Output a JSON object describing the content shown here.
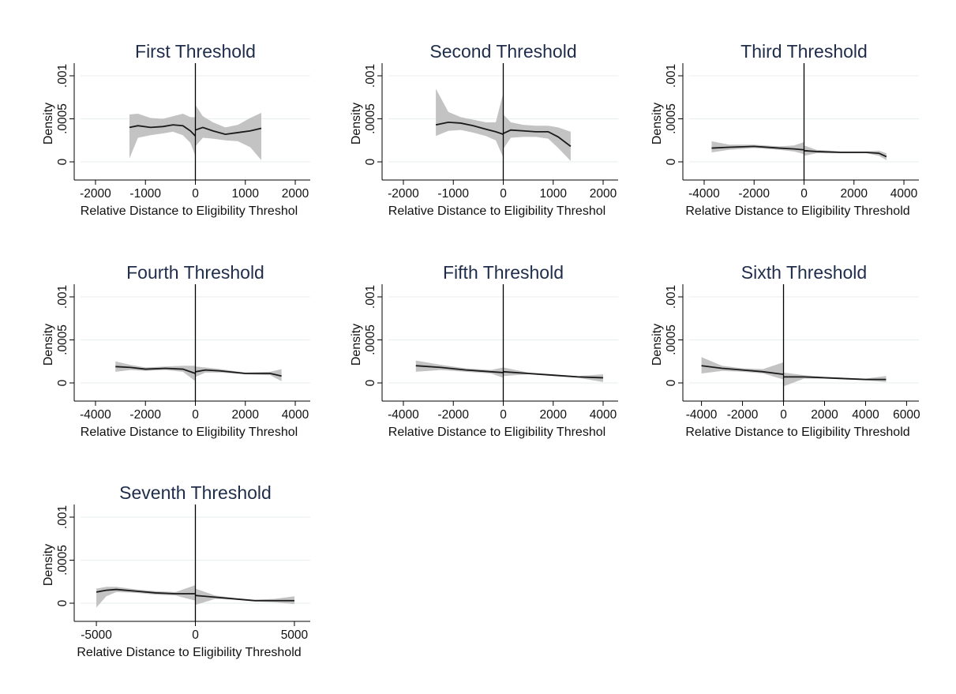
{
  "chart_data": [
    {
      "type": "line",
      "title": "First Threshold",
      "xlabel": "Relative Distance to Eligibility Threshol",
      "ylabel": "Density",
      "xlim": [
        -2300,
        2300
      ],
      "ylim": [
        0,
        0.001
      ],
      "xticks": [
        -2000,
        -1000,
        0,
        1000,
        2000
      ],
      "xtick_labels": [
        "-2000",
        "-1000",
        "0",
        "1000",
        "2000"
      ],
      "yticks": [
        0,
        0.0005,
        0.001
      ],
      "ytick_labels": [
        "0",
        ".0005",
        ".001"
      ],
      "cutoff": 0,
      "grid": true,
      "legend": "none",
      "series": [
        {
          "x": [
            -1320,
            -1150,
            -900,
            -650,
            -450,
            -250,
            -100,
            0
          ],
          "y": [
            0.0004,
            0.00042,
            0.0004,
            0.00041,
            0.00043,
            0.00042,
            0.00036,
            0.0003
          ],
          "lower": [
            4e-05,
            0.00028,
            0.00031,
            0.00033,
            0.00035,
            0.00031,
            0.00022,
            7e-05
          ],
          "upper": [
            0.00055,
            0.00056,
            0.00051,
            0.0005,
            0.00053,
            0.00056,
            0.00052,
            0.00052
          ]
        },
        {
          "x": [
            0,
            150,
            350,
            600,
            850,
            1100,
            1320
          ],
          "y": [
            0.00037,
            0.0004,
            0.00036,
            0.00032,
            0.00034,
            0.00036,
            0.00039
          ],
          "lower": [
            0.00018,
            0.00028,
            0.00027,
            0.00025,
            0.00024,
            0.00017,
            2e-05
          ],
          "upper": [
            0.00066,
            0.00053,
            0.00046,
            0.0004,
            0.00043,
            0.00051,
            0.00057
          ]
        }
      ]
    },
    {
      "type": "line",
      "title": "Second Threshold",
      "xlabel": "Relative Distance to Eligibility Threshol",
      "ylabel": "Density",
      "xlim": [
        -2300,
        2300
      ],
      "ylim": [
        0,
        0.001
      ],
      "xticks": [
        -2000,
        -1000,
        0,
        1000,
        2000
      ],
      "xtick_labels": [
        "-2000",
        "-1000",
        "0",
        "1000",
        "2000"
      ],
      "yticks": [
        0,
        0.0005,
        0.001
      ],
      "ytick_labels": [
        "0",
        ".0005",
        ".001"
      ],
      "cutoff": 0,
      "grid": true,
      "legend": "none",
      "series": [
        {
          "x": [
            -1350,
            -1100,
            -850,
            -600,
            -350,
            -150,
            0
          ],
          "y": [
            0.00043,
            0.00046,
            0.00045,
            0.00042,
            0.00038,
            0.00035,
            0.00032
          ],
          "lower": [
            0.0003,
            0.00036,
            0.00037,
            0.00034,
            0.0003,
            0.00025,
            5e-05
          ],
          "upper": [
            0.00085,
            0.00058,
            0.00052,
            0.00049,
            0.00046,
            0.00046,
            0.0008
          ]
        },
        {
          "x": [
            0,
            150,
            400,
            650,
            900,
            1100,
            1350
          ],
          "y": [
            0.00033,
            0.00037,
            0.00036,
            0.00035,
            0.00035,
            0.00029,
            0.00018
          ],
          "lower": [
            0.00015,
            0.00028,
            0.00029,
            0.00029,
            0.00027,
            0.00016,
            1e-05
          ],
          "upper": [
            0.00055,
            0.00046,
            0.00043,
            0.00042,
            0.00042,
            0.0004,
            0.00035
          ]
        }
      ]
    },
    {
      "type": "line",
      "title": "Third Threshold",
      "xlabel": "Relative Distance to Eligibility Threshold",
      "ylabel": "Density",
      "xlim": [
        -4600,
        4600
      ],
      "ylim": [
        0,
        0.001
      ],
      "xticks": [
        -4000,
        -2000,
        0,
        2000,
        4000
      ],
      "xtick_labels": [
        "-4000",
        "-2000",
        "0",
        "2000",
        "4000"
      ],
      "yticks": [
        0,
        0.0005,
        0.001
      ],
      "ytick_labels": [
        "0",
        ".0005",
        ".001"
      ],
      "cutoff": 0,
      "grid": true,
      "legend": "none",
      "series": [
        {
          "x": [
            -3700,
            -3000,
            -2000,
            -1000,
            -400,
            0
          ],
          "y": [
            0.00016,
            0.00017,
            0.00018,
            0.00016,
            0.00015,
            0.00014
          ],
          "lower": [
            0.00011,
            0.00014,
            0.00016,
            0.00014,
            0.00012,
            9e-05
          ],
          "upper": [
            0.00024,
            0.0002,
            0.0002,
            0.00018,
            0.00019,
            0.00023
          ]
        },
        {
          "x": [
            0,
            500,
            1500,
            2500,
            3000,
            3300
          ],
          "y": [
            0.00013,
            0.00012,
            0.00011,
            0.00011,
            0.0001,
            6e-05
          ],
          "lower": [
            7e-05,
            0.0001,
            0.0001,
            0.0001,
            7e-05,
            2e-05
          ],
          "upper": [
            0.00019,
            0.00014,
            0.00012,
            0.00012,
            0.00013,
            0.0001
          ]
        }
      ]
    },
    {
      "type": "line",
      "title": "Fourth Threshold",
      "xlabel": "Relative Distance to Eligibility Threshol",
      "ylabel": "Density",
      "xlim": [
        -4600,
        4600
      ],
      "ylim": [
        0,
        0.001
      ],
      "xticks": [
        -4000,
        -2000,
        0,
        2000,
        4000
      ],
      "xtick_labels": [
        "-4000",
        "-2000",
        "0",
        "2000",
        "4000"
      ],
      "yticks": [
        0,
        0.0005,
        0.001
      ],
      "ytick_labels": [
        "0",
        ".0005",
        ".001"
      ],
      "cutoff": 0,
      "grid": true,
      "legend": "none",
      "series": [
        {
          "x": [
            -3200,
            -2600,
            -2000,
            -1200,
            -500,
            0
          ],
          "y": [
            0.00019,
            0.00018,
            0.00016,
            0.00017,
            0.00016,
            0.00011
          ],
          "lower": [
            0.00013,
            0.00015,
            0.00014,
            0.00015,
            0.00013,
            2e-05
          ],
          "upper": [
            0.00025,
            0.00021,
            0.00018,
            0.00019,
            0.0002,
            0.0002
          ]
        },
        {
          "x": [
            0,
            400,
            1000,
            2000,
            3000,
            3450
          ],
          "y": [
            0.00013,
            0.00015,
            0.00014,
            0.00011,
            0.00011,
            8e-05
          ],
          "lower": [
            7e-05,
            0.00012,
            0.00012,
            0.0001,
            9e-05,
            2e-05
          ],
          "upper": [
            0.00019,
            0.00018,
            0.00016,
            0.00012,
            0.00013,
            0.00016
          ]
        }
      ]
    },
    {
      "type": "line",
      "title": "Fifth Threshold",
      "xlabel": "Relative Distance to Eligibility Threshol",
      "ylabel": "Density",
      "xlim": [
        -4600,
        4600
      ],
      "ylim": [
        0,
        0.001
      ],
      "xticks": [
        -4000,
        -2000,
        0,
        2000,
        4000
      ],
      "xtick_labels": [
        "-4000",
        "-2000",
        "0",
        "2000",
        "4000"
      ],
      "yticks": [
        0,
        0.0005,
        0.001
      ],
      "ytick_labels": [
        "0",
        ".0005",
        ".001"
      ],
      "cutoff": 0,
      "grid": true,
      "legend": "none",
      "series": [
        {
          "x": [
            -3500,
            -2500,
            -1500,
            -500,
            0
          ],
          "y": [
            0.0002,
            0.00018,
            0.00015,
            0.00013,
            0.00012
          ],
          "lower": [
            0.00013,
            0.00015,
            0.00013,
            0.00011,
            6e-05
          ],
          "upper": [
            0.00026,
            0.00021,
            0.00017,
            0.00015,
            0.00018
          ]
        },
        {
          "x": [
            0,
            1000,
            2000,
            3000,
            4000
          ],
          "y": [
            0.00013,
            0.00011,
            9e-05,
            7e-05,
            6e-05
          ],
          "lower": [
            8e-05,
            0.0001,
            8e-05,
            6e-05,
            1e-05
          ],
          "upper": [
            0.00018,
            0.00012,
            0.0001,
            8e-05,
            0.0001
          ]
        }
      ]
    },
    {
      "type": "line",
      "title": "Sixth Threshold",
      "xlabel": "Relative Distance to Eligibility Threshold",
      "ylabel": "Density",
      "xlim": [
        -4600,
        6600
      ],
      "ylim": [
        0,
        0.001
      ],
      "xticks": [
        -4000,
        -2000,
        0,
        2000,
        4000,
        6000
      ],
      "xtick_labels": [
        "-4000",
        "-2000",
        "0",
        "2000",
        "4000",
        "6000"
      ],
      "yticks": [
        0,
        0.0005,
        0.001
      ],
      "ytick_labels": [
        "0",
        ".0005",
        ".001"
      ],
      "cutoff": 0,
      "grid": true,
      "legend": "none",
      "series": [
        {
          "x": [
            -4000,
            -3000,
            -2000,
            -1000,
            0
          ],
          "y": [
            0.0002,
            0.00017,
            0.00015,
            0.00013,
            0.0001
          ],
          "lower": [
            0.00011,
            0.00014,
            0.00013,
            0.00011,
            4e-05
          ],
          "upper": [
            0.0003,
            0.0002,
            0.00017,
            0.00016,
            0.00024
          ]
        },
        {
          "x": [
            0,
            1000,
            2000,
            3000,
            4000,
            5000
          ],
          "y": [
            7e-05,
            7e-05,
            6e-05,
            5e-05,
            4e-05,
            4e-05
          ],
          "lower": [
            -4e-05,
            5e-05,
            5e-05,
            4e-05,
            3e-05,
            1e-05
          ],
          "upper": [
            0.00012,
            9e-05,
            7e-05,
            6e-05,
            5e-05,
            8e-05
          ]
        }
      ]
    },
    {
      "type": "line",
      "title": "Seventh Threshold",
      "xlabel": "Relative Distance to Eligibility Threshold",
      "ylabel": "Density",
      "xlim": [
        -5800,
        5800
      ],
      "ylim": [
        0,
        0.001
      ],
      "xticks": [
        -5000,
        0,
        5000
      ],
      "xtick_labels": [
        "-5000",
        "0",
        "5000"
      ],
      "yticks": [
        0,
        0.0005,
        0.001
      ],
      "ytick_labels": [
        "0",
        ".0005",
        ".001"
      ],
      "cutoff": 0,
      "grid": true,
      "legend": "none",
      "series": [
        {
          "x": [
            -5000,
            -4500,
            -4000,
            -3000,
            -2000,
            -1000,
            0
          ],
          "y": [
            0.00013,
            0.00015,
            0.00016,
            0.00014,
            0.00012,
            0.00011,
            0.00011
          ],
          "lower": [
            -5e-05,
            8e-05,
            0.00013,
            0.00012,
            0.0001,
            9e-05,
            3e-05
          ],
          "upper": [
            0.00017,
            0.00019,
            0.00019,
            0.00016,
            0.00014,
            0.00013,
            0.00021
          ]
        },
        {
          "x": [
            0,
            1000,
            2000,
            3000,
            4000,
            5000
          ],
          "y": [
            9e-05,
            7e-05,
            5e-05,
            3e-05,
            3e-05,
            3e-05
          ],
          "lower": [
            -2e-05,
            5e-05,
            4e-05,
            2e-05,
            1e-05,
            -1e-05
          ],
          "upper": [
            0.00017,
            9e-05,
            6e-05,
            4e-05,
            5e-05,
            8e-05
          ]
        }
      ]
    }
  ]
}
